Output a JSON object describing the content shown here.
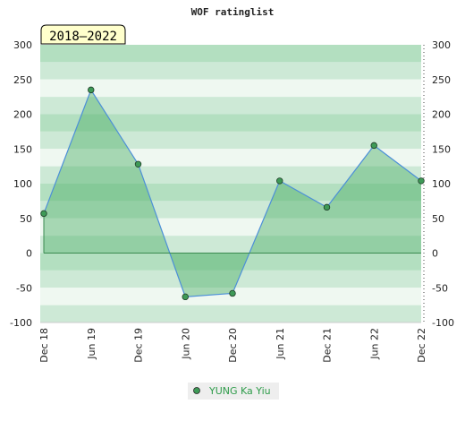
{
  "chart_data": {
    "type": "area",
    "title": "WOF ratinglist",
    "badge": "2018–2022",
    "xlabel": "",
    "ylabel": "",
    "categories": [
      "Dec 18",
      "Jun 19",
      "Dec 19",
      "Jun 20",
      "Dec 20",
      "Jun 21",
      "Dec 21",
      "Jun 22",
      "Dec 22"
    ],
    "ylim": [
      -100,
      300
    ],
    "yticks": [
      -100,
      -50,
      0,
      50,
      100,
      150,
      200,
      250,
      300
    ],
    "ytick_labels": [
      "-100",
      "-50",
      "0",
      "50",
      "100",
      "150",
      "200",
      "250",
      "300"
    ],
    "series": [
      {
        "name": "YUNG Ka Yiu",
        "values": [
          57,
          235,
          128,
          -63,
          -58,
          104,
          66,
          155,
          104
        ]
      }
    ],
    "grid": "horizontal-bands",
    "axes": "left-and-right",
    "legend_placement": "bottom-center",
    "colors": {
      "band_dark": "#b3dfc0",
      "band_mid": "#cde9d6",
      "band_light": "#eff8f1",
      "area_fill": "#4daf68",
      "line": "#4c8fd8",
      "marker": "#3e9a57",
      "badge_bg": "#ffffcc"
    }
  }
}
